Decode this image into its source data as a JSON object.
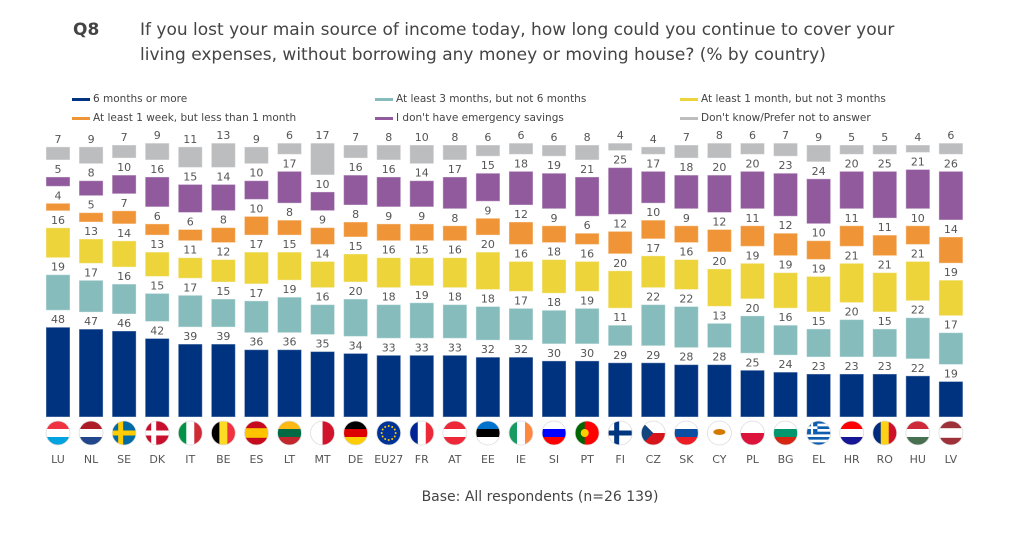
{
  "question_id": "Q8",
  "base": "Base: All respondents (n=26 139)",
  "chart_data": {
    "type": "bar",
    "stacked": true,
    "title": "If you lost your main source of income today, how long could you continue to cover your living expenses, without borrowing any money or moving house? (% by country)",
    "categories": [
      "LU",
      "NL",
      "SE",
      "DK",
      "IT",
      "BE",
      "ES",
      "LT",
      "MT",
      "DE",
      "EU27",
      "FR",
      "AT",
      "EE",
      "IE",
      "SI",
      "PT",
      "FI",
      "CZ",
      "SK",
      "CY",
      "PL",
      "BG",
      "EL",
      "HR",
      "RO",
      "HU",
      "LV"
    ],
    "series": [
      {
        "name": "6 months or more",
        "color": "#00337f",
        "values": [
          48,
          47,
          46,
          42,
          39,
          39,
          36,
          36,
          35,
          34,
          33,
          33,
          33,
          32,
          32,
          30,
          30,
          29,
          29,
          28,
          28,
          25,
          24,
          23,
          23,
          23,
          22,
          19
        ]
      },
      {
        "name": "At least 3 months, but not 6 months",
        "color": "#86bcbc",
        "values": [
          19,
          17,
          16,
          15,
          17,
          15,
          17,
          19,
          16,
          20,
          18,
          19,
          18,
          18,
          17,
          18,
          19,
          11,
          22,
          22,
          13,
          20,
          16,
          15,
          20,
          15,
          22,
          17
        ]
      },
      {
        "name": "At least 1 month, but not 3 months",
        "color": "#ecd43a",
        "values": [
          16,
          13,
          14,
          13,
          11,
          12,
          17,
          15,
          14,
          15,
          16,
          15,
          16,
          20,
          16,
          18,
          16,
          20,
          17,
          16,
          20,
          19,
          19,
          19,
          21,
          21,
          21,
          19
        ]
      },
      {
        "name": "At least 1 week, but less than 1 month",
        "color": "#f09537",
        "values": [
          4,
          5,
          7,
          6,
          6,
          8,
          10,
          8,
          9,
          8,
          9,
          9,
          8,
          9,
          12,
          9,
          6,
          12,
          10,
          9,
          12,
          11,
          12,
          10,
          11,
          11,
          10,
          14
        ]
      },
      {
        "name": "I don't have emergency savings",
        "color": "#905a9c",
        "values": [
          5,
          8,
          10,
          16,
          15,
          14,
          10,
          17,
          10,
          16,
          16,
          14,
          17,
          15,
          18,
          19,
          21,
          25,
          17,
          18,
          20,
          20,
          23,
          24,
          20,
          25,
          21,
          26
        ]
      },
      {
        "name": "Don't know/Prefer not to answer",
        "color": "#bcbdbf",
        "values": [
          7,
          9,
          7,
          9,
          11,
          13,
          9,
          6,
          17,
          7,
          8,
          10,
          8,
          6,
          6,
          6,
          8,
          4,
          4,
          7,
          8,
          6,
          7,
          9,
          5,
          5,
          4,
          6
        ]
      }
    ],
    "legend_order": [
      0,
      1,
      2,
      3,
      4,
      5
    ],
    "legend_placement": "top",
    "xlabel": "",
    "ylabel": "",
    "ylim": [
      0,
      100
    ]
  }
}
